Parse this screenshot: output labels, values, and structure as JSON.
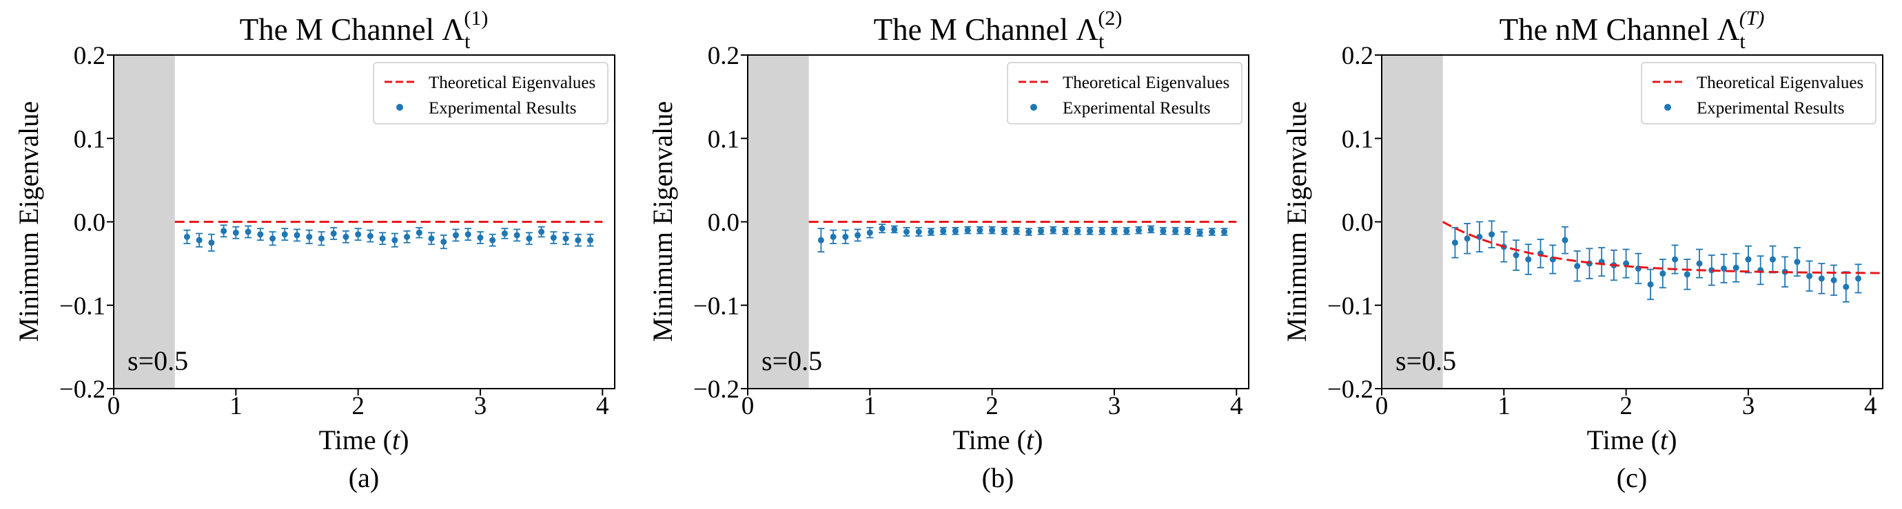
{
  "colors": {
    "theory": "#e8171b",
    "experiment": "#1f77b4",
    "shade": "#d3d3d3",
    "axes": "#000000"
  },
  "chart_data": [
    {
      "type": "scatter",
      "title_prefix": "The M Channel Λ",
      "title_sub": "t",
      "title_sup": "(1)",
      "panel_label": "(a)",
      "xlabel_prefix": "Time (",
      "xlabel_var": "t",
      "xlabel_suffix": ")",
      "ylabel": "Minimum Eigenvalue",
      "xlim": [
        0,
        4.1
      ],
      "ylim": [
        -0.2,
        0.2
      ],
      "xticks": [
        0,
        1,
        2,
        3,
        4
      ],
      "xtick_labels": [
        "0",
        "1",
        "2",
        "3",
        "4"
      ],
      "yticks": [
        0.2,
        0.1,
        0.0,
        -0.1,
        -0.2
      ],
      "ytick_labels": [
        "0.2",
        "0.1",
        "0.0",
        "−0.1",
        "−0.2"
      ],
      "shaded_region": [
        0,
        0.5
      ],
      "annotation": "s=0.5",
      "legend_position": "top-right",
      "legend": [
        "Theoretical Eigenvalues",
        "Experimental Results"
      ],
      "theory": {
        "t_start": 0.5,
        "t_end": 4.0,
        "form": "constant",
        "value": 0.0
      },
      "experiment": {
        "t": [
          0.6,
          0.7,
          0.8,
          0.9,
          1.0,
          1.1,
          1.2,
          1.3,
          1.4,
          1.5,
          1.6,
          1.7,
          1.8,
          1.9,
          2.0,
          2.1,
          2.2,
          2.3,
          2.4,
          2.5,
          2.6,
          2.7,
          2.8,
          2.9,
          3.0,
          3.1,
          3.2,
          3.3,
          3.4,
          3.5,
          3.6,
          3.7,
          3.8,
          3.9
        ],
        "value": [
          -0.018,
          -0.022,
          -0.025,
          -0.011,
          -0.013,
          -0.012,
          -0.015,
          -0.02,
          -0.015,
          -0.016,
          -0.018,
          -0.02,
          -0.014,
          -0.018,
          -0.015,
          -0.017,
          -0.02,
          -0.022,
          -0.018,
          -0.013,
          -0.02,
          -0.024,
          -0.016,
          -0.015,
          -0.019,
          -0.022,
          -0.014,
          -0.016,
          -0.02,
          -0.012,
          -0.019,
          -0.02,
          -0.022,
          -0.022
        ],
        "error": [
          0.008,
          0.008,
          0.01,
          0.007,
          0.007,
          0.007,
          0.007,
          0.008,
          0.007,
          0.007,
          0.008,
          0.008,
          0.007,
          0.007,
          0.007,
          0.007,
          0.007,
          0.008,
          0.007,
          0.006,
          0.007,
          0.008,
          0.007,
          0.007,
          0.007,
          0.007,
          0.006,
          0.007,
          0.007,
          0.006,
          0.007,
          0.007,
          0.007,
          0.007
        ]
      }
    },
    {
      "type": "scatter",
      "title_prefix": "The M Channel Λ",
      "title_sub": "t",
      "title_sup": "(2)",
      "panel_label": "(b)",
      "xlabel_prefix": "Time (",
      "xlabel_var": "t",
      "xlabel_suffix": ")",
      "ylabel": "Minimum Eigenvalue",
      "xlim": [
        0,
        4.1
      ],
      "ylim": [
        -0.2,
        0.2
      ],
      "xticks": [
        0,
        1,
        2,
        3,
        4
      ],
      "xtick_labels": [
        "0",
        "1",
        "2",
        "3",
        "4"
      ],
      "yticks": [
        0.2,
        0.1,
        0.0,
        -0.1,
        -0.2
      ],
      "ytick_labels": [
        "0.2",
        "0.1",
        "0.0",
        "−0.1",
        "−0.2"
      ],
      "shaded_region": [
        0,
        0.5
      ],
      "annotation": "s=0.5",
      "legend_position": "top-right",
      "legend": [
        "Theoretical Eigenvalues",
        "Experimental Results"
      ],
      "theory": {
        "t_start": 0.5,
        "t_end": 4.0,
        "form": "constant",
        "value": 0.0
      },
      "experiment": {
        "t": [
          0.6,
          0.7,
          0.8,
          0.9,
          1.0,
          1.1,
          1.2,
          1.3,
          1.4,
          1.5,
          1.6,
          1.7,
          1.8,
          1.9,
          2.0,
          2.1,
          2.2,
          2.3,
          2.4,
          2.5,
          2.6,
          2.7,
          2.8,
          2.9,
          3.0,
          3.1,
          3.2,
          3.3,
          3.4,
          3.5,
          3.6,
          3.7,
          3.8,
          3.9
        ],
        "value": [
          -0.022,
          -0.018,
          -0.018,
          -0.016,
          -0.013,
          -0.008,
          -0.009,
          -0.012,
          -0.012,
          -0.012,
          -0.011,
          -0.011,
          -0.01,
          -0.01,
          -0.01,
          -0.011,
          -0.011,
          -0.012,
          -0.011,
          -0.01,
          -0.011,
          -0.011,
          -0.011,
          -0.011,
          -0.011,
          -0.011,
          -0.01,
          -0.009,
          -0.011,
          -0.011,
          -0.011,
          -0.013,
          -0.012,
          -0.012
        ],
        "error": [
          0.014,
          0.008,
          0.008,
          0.007,
          0.006,
          0.005,
          0.004,
          0.005,
          0.005,
          0.004,
          0.004,
          0.004,
          0.004,
          0.004,
          0.004,
          0.004,
          0.004,
          0.004,
          0.004,
          0.004,
          0.004,
          0.004,
          0.004,
          0.004,
          0.004,
          0.004,
          0.004,
          0.004,
          0.004,
          0.004,
          0.004,
          0.004,
          0.004,
          0.004
        ]
      }
    },
    {
      "type": "scatter",
      "title_prefix": "The nM Channel Λ",
      "title_sub": "t",
      "title_sup": "(T)",
      "panel_label": "(c)",
      "xlabel_prefix": "Time (",
      "xlabel_var": "t",
      "xlabel_suffix": ")",
      "ylabel": "Minimum Eigenvalue",
      "xlim": [
        0,
        4.1
      ],
      "ylim": [
        -0.2,
        0.2
      ],
      "xticks": [
        0,
        1,
        2,
        3,
        4
      ],
      "xtick_labels": [
        "0",
        "1",
        "2",
        "3",
        "4"
      ],
      "yticks": [
        0.2,
        0.1,
        0.0,
        -0.1,
        -0.2
      ],
      "ytick_labels": [
        "0.2",
        "0.1",
        "0.0",
        "−0.1",
        "−0.2"
      ],
      "shaded_region": [
        0,
        0.5
      ],
      "annotation": "s=0.5",
      "legend_position": "top-right",
      "legend": [
        "Theoretical Eigenvalues",
        "Experimental Results"
      ],
      "theory": {
        "t_start": 0.5,
        "t_end": 4.1,
        "form": "exp_decay",
        "asymptote": -0.062,
        "rate": 1.3
      },
      "experiment": {
        "t": [
          0.6,
          0.7,
          0.8,
          0.9,
          1.0,
          1.1,
          1.2,
          1.3,
          1.4,
          1.5,
          1.6,
          1.7,
          1.8,
          1.9,
          2.0,
          2.1,
          2.2,
          2.3,
          2.4,
          2.5,
          2.6,
          2.7,
          2.8,
          2.9,
          3.0,
          3.1,
          3.2,
          3.3,
          3.4,
          3.5,
          3.6,
          3.7,
          3.8,
          3.9
        ],
        "value": [
          -0.025,
          -0.02,
          -0.018,
          -0.015,
          -0.03,
          -0.04,
          -0.045,
          -0.038,
          -0.045,
          -0.022,
          -0.053,
          -0.05,
          -0.048,
          -0.052,
          -0.05,
          -0.056,
          -0.075,
          -0.062,
          -0.045,
          -0.063,
          -0.05,
          -0.058,
          -0.056,
          -0.055,
          -0.045,
          -0.058,
          -0.045,
          -0.06,
          -0.048,
          -0.065,
          -0.068,
          -0.07,
          -0.078,
          -0.068
        ],
        "error": [
          0.018,
          0.018,
          0.018,
          0.016,
          0.018,
          0.018,
          0.018,
          0.017,
          0.017,
          0.016,
          0.018,
          0.018,
          0.017,
          0.018,
          0.017,
          0.018,
          0.018,
          0.017,
          0.017,
          0.018,
          0.017,
          0.018,
          0.017,
          0.017,
          0.016,
          0.017,
          0.016,
          0.018,
          0.017,
          0.018,
          0.018,
          0.018,
          0.018,
          0.017
        ]
      }
    }
  ]
}
